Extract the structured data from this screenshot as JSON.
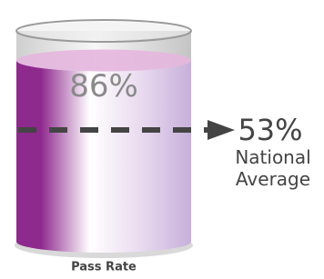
{
  "chart_data": {
    "type": "cylinder",
    "categories": [
      "Pass Rate"
    ],
    "values": [
      86
    ],
    "value_labels": [
      "86%"
    ],
    "color": "#8e2a8e",
    "ylim": [
      0,
      100
    ],
    "reference": {
      "name": "National Average",
      "value": 53,
      "label": "53%"
    }
  }
}
